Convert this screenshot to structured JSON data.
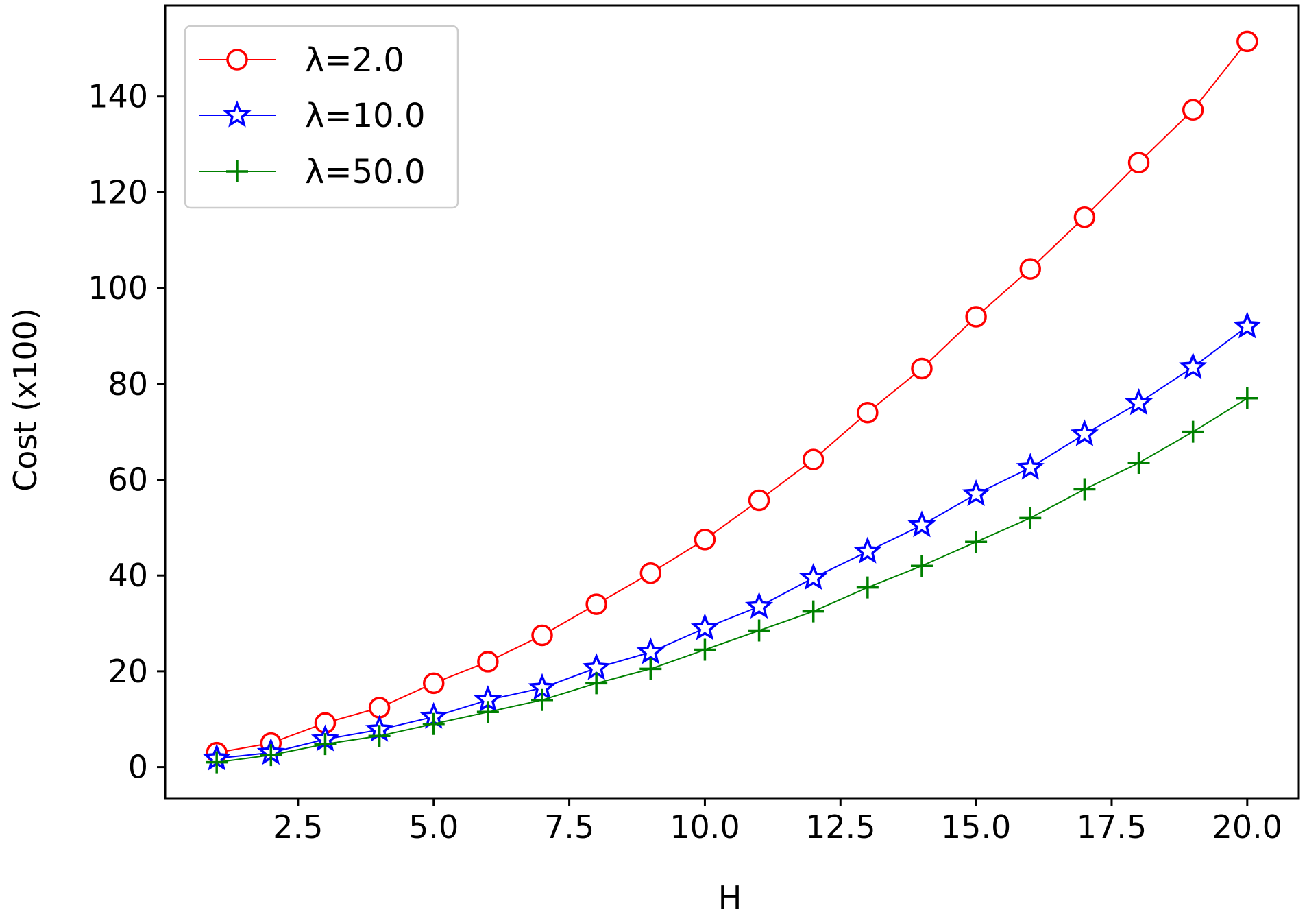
{
  "chart_data": {
    "type": "line",
    "title": "",
    "xlabel": "H",
    "ylabel": "Cost (x100)",
    "xlim": [
      0.05,
      20.95
    ],
    "ylim": [
      -6.5,
      159
    ],
    "xticks": [
      2.5,
      5.0,
      7.5,
      10.0,
      12.5,
      15.0,
      17.5,
      20.0
    ],
    "xtick_labels": [
      "2.5",
      "5.0",
      "7.5",
      "10.0",
      "12.5",
      "15.0",
      "17.5",
      "20.0"
    ],
    "yticks": [
      0,
      20,
      40,
      60,
      80,
      100,
      120,
      140
    ],
    "ytick_labels": [
      "0",
      "20",
      "40",
      "60",
      "80",
      "100",
      "120",
      "140"
    ],
    "grid": false,
    "legend_position": "top-left",
    "x": [
      1,
      2,
      3,
      4,
      5,
      6,
      7,
      8,
      9,
      10,
      11,
      12,
      13,
      14,
      15,
      16,
      17,
      18,
      19,
      20
    ],
    "series": [
      {
        "name": "λ=2.0",
        "color": "#ff0000",
        "marker": "circle",
        "values": [
          3.0,
          5.0,
          9.2,
          12.4,
          17.5,
          22.0,
          27.5,
          34.0,
          40.5,
          47.5,
          55.7,
          64.2,
          74.0,
          83.2,
          94.0,
          104.0,
          114.8,
          126.2,
          137.2,
          151.5
        ]
      },
      {
        "name": "λ=10.0",
        "color": "#0000ff",
        "marker": "star",
        "values": [
          1.8,
          3.0,
          5.8,
          7.8,
          10.5,
          14.0,
          16.5,
          20.7,
          24.0,
          29.0,
          33.5,
          39.5,
          45.0,
          50.5,
          57.0,
          62.5,
          69.5,
          76.0,
          83.5,
          92.0
        ]
      },
      {
        "name": "λ=50.0",
        "color": "#008000",
        "marker": "plus",
        "values": [
          1.0,
          2.5,
          4.8,
          6.5,
          9.0,
          11.5,
          14.0,
          17.5,
          20.5,
          24.5,
          28.5,
          32.5,
          37.5,
          42.0,
          47.0,
          52.0,
          58.0,
          63.5,
          70.0,
          77.0
        ]
      }
    ]
  }
}
